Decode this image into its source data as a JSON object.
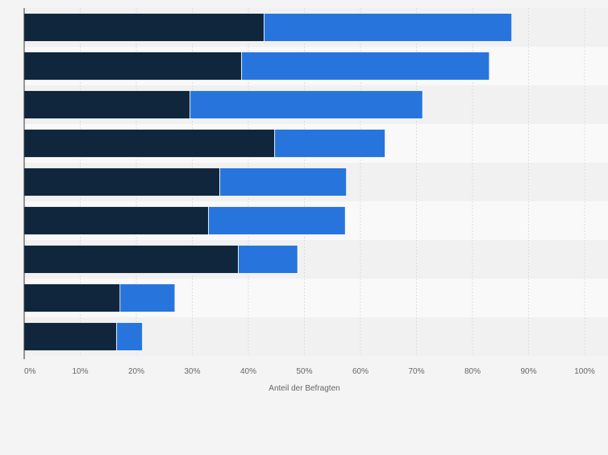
{
  "chart_data": {
    "type": "bar",
    "orientation": "horizontal",
    "stacked": true,
    "categories": [
      "",
      "",
      "",
      "",
      "",
      "",
      "",
      "",
      ""
    ],
    "series": [
      {
        "color": "#10263d",
        "values": [
          42.8,
          38.8,
          29.6,
          44.7,
          34.9,
          32.9,
          38.2,
          17.1,
          16.5
        ]
      },
      {
        "color": "#2775dc",
        "values": [
          44.2,
          44.2,
          41.5,
          19.7,
          22.6,
          24.4,
          10.6,
          9.8,
          4.6
        ]
      }
    ],
    "xlabel": "Anteil der Befragten",
    "ylabel": "",
    "xlim": [
      0,
      100
    ],
    "xticks": [
      "0%",
      "10%",
      "20%",
      "30%",
      "40%",
      "50%",
      "60%",
      "70%",
      "80%",
      "90%",
      "100%"
    ],
    "grid": true,
    "legend": "none"
  },
  "colors": {
    "page_background": "#f4f4f4",
    "band_dark": "#f1f1f1",
    "band_light": "#f9f9f9",
    "gridline": "#dddddd",
    "axis_line": "#333333"
  }
}
